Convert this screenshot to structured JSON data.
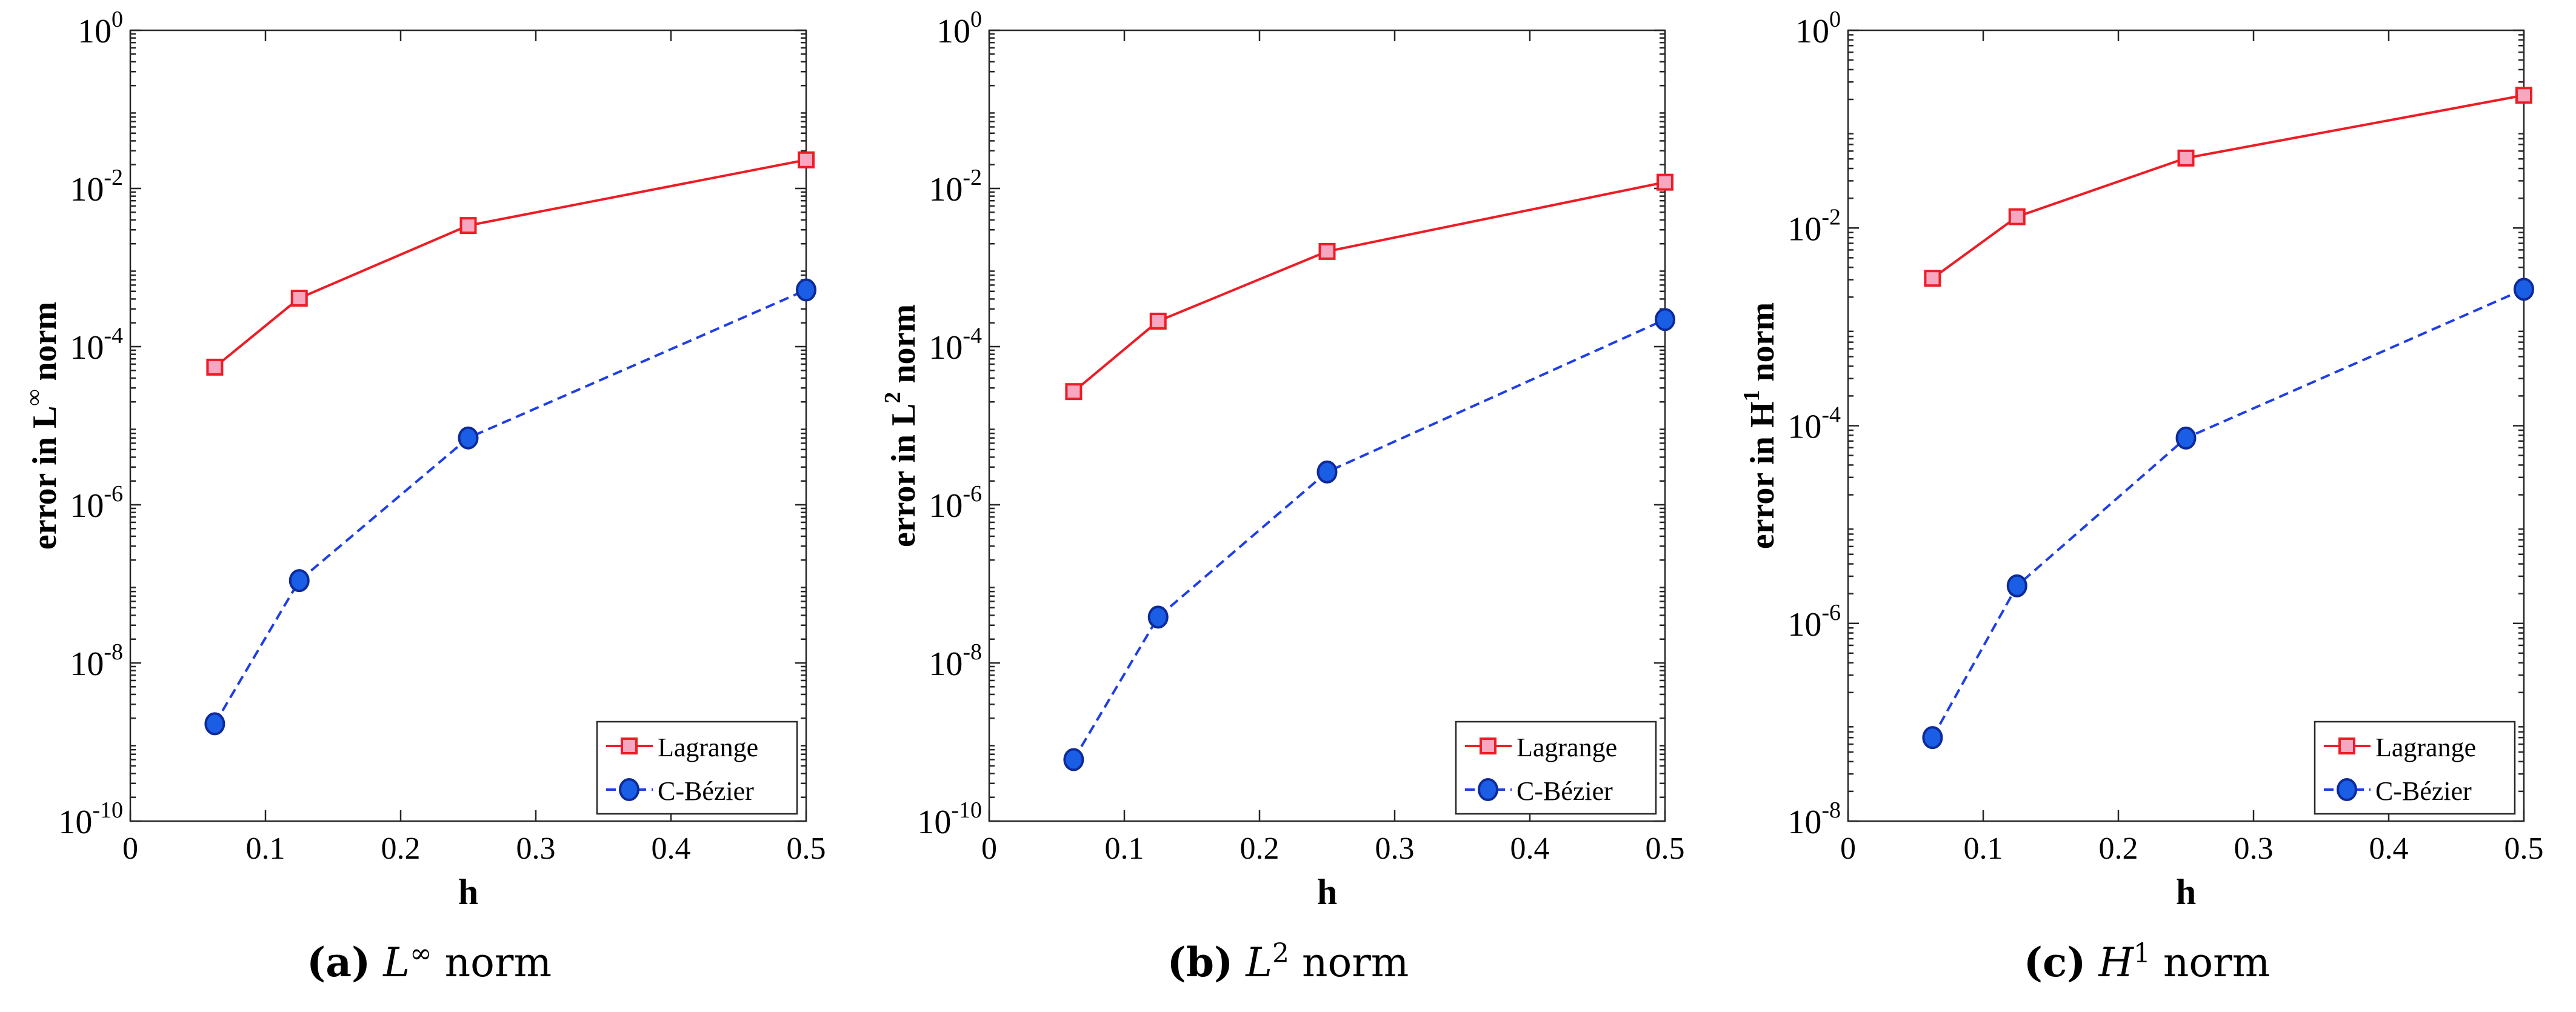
{
  "chart_data": [
    {
      "type": "line",
      "yscale": "log",
      "xlabel": "h",
      "ylabel_prefix": "error in L",
      "ylabel_sup": "∞",
      "ylabel_suffix": " norm",
      "xlim": [
        0,
        0.5
      ],
      "ylim_exp": [
        -10,
        0
      ],
      "x_ticks": [
        "0",
        "0.1",
        "0.2",
        "0.3",
        "0.4",
        "0.5"
      ],
      "y_tick_exps": [
        "0",
        "-2",
        "-4",
        "-6",
        "-8",
        "-10"
      ],
      "x": [
        0.0625,
        0.125,
        0.25,
        0.5
      ],
      "series": [
        {
          "name": "Lagrange",
          "color": "#ee1c25",
          "marker": "square",
          "dash": "solid",
          "values": [
            5.5e-05,
            0.00041,
            0.0034,
            0.023
          ]
        },
        {
          "name": "C-Bézier",
          "color": "#1f3fe6",
          "marker": "circle",
          "dash": "dashed",
          "values": [
            1.7e-09,
            1.1e-07,
            7e-06,
            0.00052
          ]
        }
      ],
      "legend_position": "bottom-right",
      "caption": {
        "label": "(a)",
        "symbol": "L",
        "sup": "∞",
        "text": " norm"
      }
    },
    {
      "type": "line",
      "yscale": "log",
      "xlabel": "h",
      "ylabel_prefix": "error in L",
      "ylabel_sup": "2",
      "ylabel_suffix": " norm",
      "xlim": [
        0,
        0.5
      ],
      "ylim_exp": [
        -10,
        0
      ],
      "x_ticks": [
        "0",
        "0.1",
        "0.2",
        "0.3",
        "0.4",
        "0.5"
      ],
      "y_tick_exps": [
        "0",
        "-2",
        "-4",
        "-6",
        "-8",
        "-10"
      ],
      "x": [
        0.0625,
        0.125,
        0.25,
        0.5
      ],
      "series": [
        {
          "name": "Lagrange",
          "color": "#ee1c25",
          "marker": "square",
          "dash": "solid",
          "values": [
            2.7e-05,
            0.00021,
            0.0016,
            0.012
          ]
        },
        {
          "name": "C-Bézier",
          "color": "#1f3fe6",
          "marker": "circle",
          "dash": "dashed",
          "values": [
            6e-10,
            3.8e-08,
            2.6e-06,
            0.00022
          ]
        }
      ],
      "legend_position": "bottom-right",
      "caption": {
        "label": "(b)",
        "symbol": "L",
        "sup": "2",
        "text": " norm"
      }
    },
    {
      "type": "line",
      "yscale": "log",
      "xlabel": "h",
      "ylabel_prefix": "error in H",
      "ylabel_sup": "1",
      "ylabel_suffix": " norm",
      "xlim": [
        0,
        0.5
      ],
      "ylim_exp": [
        -8,
        0
      ],
      "x_ticks": [
        "0",
        "0.1",
        "0.2",
        "0.3",
        "0.4",
        "0.5"
      ],
      "y_tick_exps": [
        "0",
        "-2",
        "-4",
        "-6",
        "-8"
      ],
      "x": [
        0.0625,
        0.125,
        0.25,
        0.5
      ],
      "series": [
        {
          "name": "Lagrange",
          "color": "#ee1c25",
          "marker": "square",
          "dash": "solid",
          "values": [
            0.0031,
            0.013,
            0.051,
            0.22
          ]
        },
        {
          "name": "C-Bézier",
          "color": "#1f3fe6",
          "marker": "circle",
          "dash": "dashed",
          "values": [
            7e-08,
            2.4e-06,
            7.5e-05,
            0.0024
          ]
        }
      ],
      "legend_position": "bottom-right",
      "caption": {
        "label": "(c)",
        "symbol": "H",
        "sup": "1",
        "text": " norm"
      }
    }
  ]
}
